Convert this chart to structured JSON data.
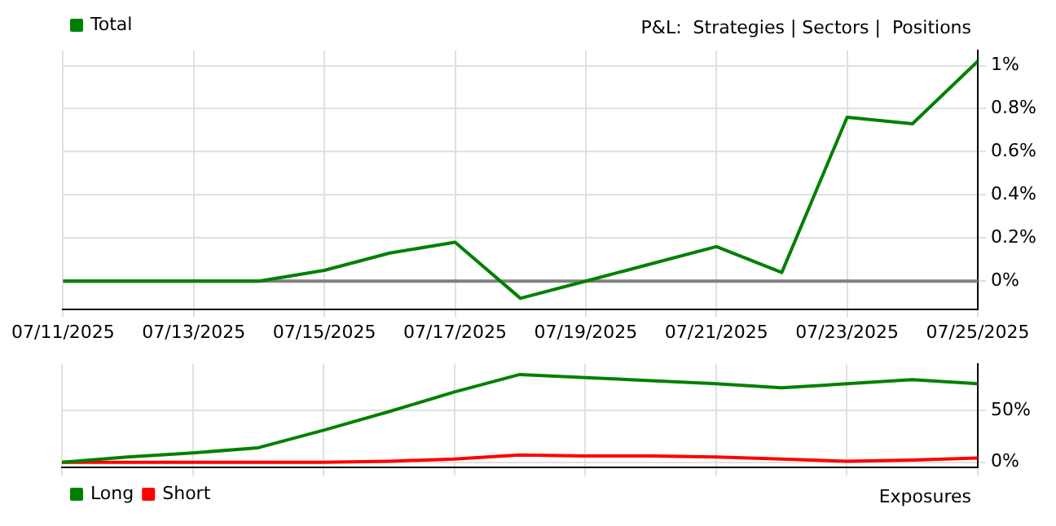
{
  "chart_data": [
    {
      "type": "line",
      "x": [
        "2025-07-11",
        "2025-07-12",
        "2025-07-13",
        "2025-07-14",
        "2025-07-15",
        "2025-07-16",
        "2025-07-17",
        "2025-07-18",
        "2025-07-19",
        "2025-07-20",
        "2025-07-21",
        "2025-07-22",
        "2025-07-23",
        "2025-07-24",
        "2025-07-25"
      ],
      "series": [
        {
          "name": "Total",
          "color": "#008000",
          "values": [
            0,
            0,
            0,
            0,
            0.05,
            0.13,
            0.18,
            -0.08,
            0,
            0.08,
            0.16,
            0.04,
            0.76,
            0.73,
            1.02
          ]
        }
      ],
      "xlim": [
        "2025-07-11",
        "2025-07-25"
      ],
      "xticks": [
        {
          "value": "2025-07-11",
          "label": "07/11/2025"
        },
        {
          "value": "2025-07-13",
          "label": "07/13/2025"
        },
        {
          "value": "2025-07-15",
          "label": "07/15/2025"
        },
        {
          "value": "2025-07-17",
          "label": "07/17/2025"
        },
        {
          "value": "2025-07-19",
          "label": "07/19/2025"
        },
        {
          "value": "2025-07-21",
          "label": "07/21/2025"
        },
        {
          "value": "2025-07-23",
          "label": "07/23/2025"
        },
        {
          "value": "2025-07-25",
          "label": "07/25/2025"
        }
      ],
      "ylim": [
        -0.13,
        1.07
      ],
      "yticks": [
        {
          "value": 0,
          "label": "0%"
        },
        {
          "value": 0.2,
          "label": "0.2%"
        },
        {
          "value": 0.4,
          "label": "0.4%"
        },
        {
          "value": 0.6,
          "label": "0.6%"
        },
        {
          "value": 0.8,
          "label": "0.8%"
        },
        {
          "value": 1,
          "label": "1%"
        }
      ],
      "ref_lines": [
        {
          "axis": "y",
          "value": 0,
          "color": "#808080"
        }
      ],
      "annotations": [
        "P&L:  Strategies | Sectors |  Positions"
      ],
      "grid": true,
      "legend": "top left",
      "marker": "none"
    },
    {
      "type": "line",
      "x": [
        "2025-07-11",
        "2025-07-12",
        "2025-07-13",
        "2025-07-14",
        "2025-07-15",
        "2025-07-16",
        "2025-07-17",
        "2025-07-18",
        "2025-07-19",
        "2025-07-20",
        "2025-07-21",
        "2025-07-22",
        "2025-07-23",
        "2025-07-24",
        "2025-07-25"
      ],
      "series": [
        {
          "name": "Long",
          "color": "#008000",
          "values": [
            0,
            5,
            9,
            14,
            31,
            49,
            68,
            85,
            82,
            79,
            76,
            72,
            76,
            80,
            76
          ]
        },
        {
          "name": "Short",
          "color": "#ff0000",
          "values": [
            0,
            0,
            0,
            0,
            0,
            1,
            3,
            7,
            6,
            6,
            5,
            3,
            1,
            2,
            4
          ]
        }
      ],
      "xlim": [
        "2025-07-11",
        "2025-07-25"
      ],
      "xticks": [
        {
          "value": "2025-07-11",
          "label": null
        },
        {
          "value": "2025-07-13",
          "label": null
        },
        {
          "value": "2025-07-15",
          "label": null
        },
        {
          "value": "2025-07-17",
          "label": null
        },
        {
          "value": "2025-07-19",
          "label": null
        },
        {
          "value": "2025-07-21",
          "label": null
        },
        {
          "value": "2025-07-23",
          "label": null
        },
        {
          "value": "2025-07-25",
          "label": null
        }
      ],
      "ylim": [
        -5,
        95
      ],
      "yticks": [
        {
          "value": 0,
          "label": "0%"
        },
        {
          "value": 50,
          "label": "50%"
        }
      ],
      "annotations": [
        "Exposures"
      ],
      "tick_labels": "y",
      "grid": true,
      "legend": "bottom left",
      "marker": "none"
    }
  ]
}
